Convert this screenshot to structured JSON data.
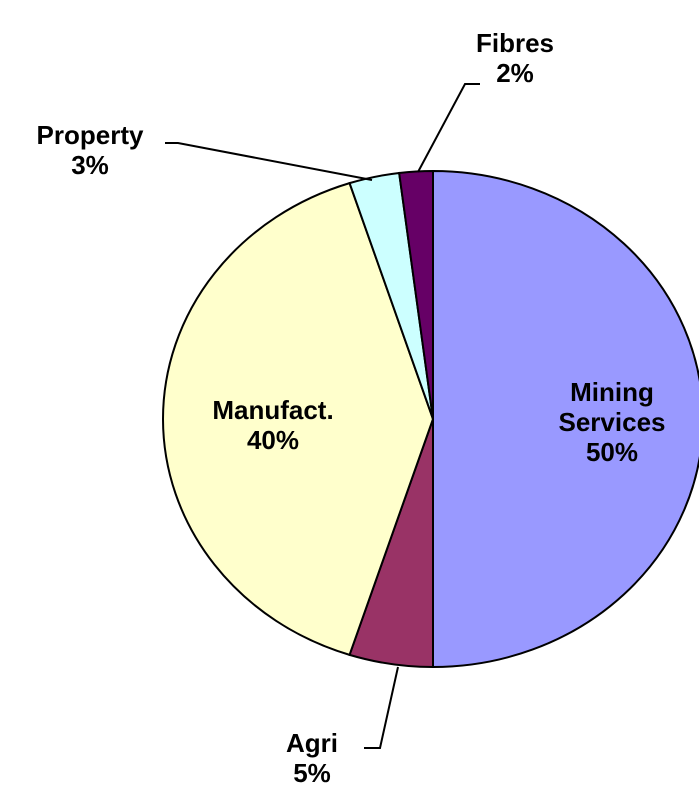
{
  "chart_data": {
    "type": "pie",
    "categories": [
      "Mining Services",
      "Agri",
      "Manufact.",
      "Property",
      "Fibres"
    ],
    "values": [
      50,
      5,
      40,
      3,
      2
    ],
    "value_labels": [
      "50%",
      "5%",
      "40%",
      "3%",
      "2%"
    ],
    "colors": [
      "#9999ff",
      "#993366",
      "#ffffcc",
      "#ccffff",
      "#660066"
    ]
  }
}
